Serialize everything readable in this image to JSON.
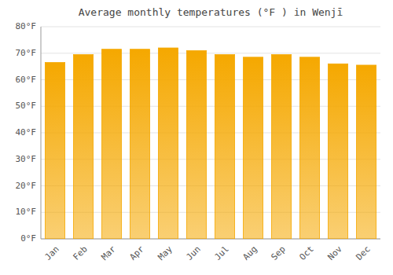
{
  "chart_data": {
    "type": "bar",
    "title": "Average monthly temperatures (°F ) in Wenjī",
    "categories": [
      "Jan",
      "Feb",
      "Mar",
      "Apr",
      "May",
      "Jun",
      "Jul",
      "Aug",
      "Sep",
      "Oct",
      "Nov",
      "Dec"
    ],
    "values": [
      66.5,
      69.5,
      71.5,
      71.5,
      72.0,
      71.0,
      69.5,
      68.5,
      69.5,
      68.5,
      66.0,
      65.5
    ],
    "color": "#F5A800",
    "ylim": [
      0,
      80
    ],
    "yticks": [
      {
        "value": 0,
        "label": "0°F"
      },
      {
        "value": 10,
        "label": "10°F"
      },
      {
        "value": 20,
        "label": "20°F"
      },
      {
        "value": 30,
        "label": "30°F"
      },
      {
        "value": 40,
        "label": "40°F"
      },
      {
        "value": 50,
        "label": "50°F"
      },
      {
        "value": 60,
        "label": "60°F"
      },
      {
        "value": 70,
        "label": "70°F"
      },
      {
        "value": 80,
        "label": "80°F"
      }
    ],
    "grid": true
  }
}
